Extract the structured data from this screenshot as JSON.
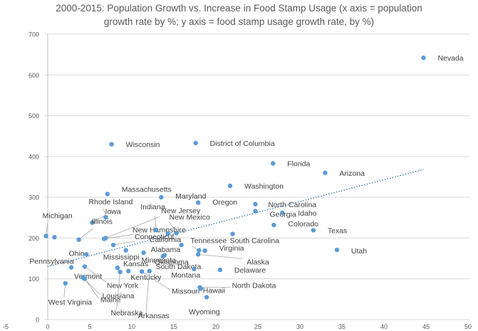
{
  "chart_data": {
    "type": "scatter",
    "title_lines": [
      "2000-2015: Population Growth vs. Increase in Food Stamp Usage (x axis = population",
      "growth rate by %; y axis = food stamp usage growth rate, by %)"
    ],
    "xlabel": "",
    "ylabel": "",
    "xlim": [
      -5,
      50
    ],
    "ylim": [
      0,
      700
    ],
    "x_ticks": [
      -5,
      0,
      5,
      10,
      15,
      20,
      25,
      30,
      35,
      40,
      45,
      50
    ],
    "y_ticks": [
      0,
      100,
      200,
      300,
      400,
      500,
      600,
      700
    ],
    "grid": "horizontal",
    "legend": "none",
    "point_color": "#5b9bd5",
    "trendline": {
      "style": "dotted",
      "color": "#2e75b6",
      "from": [
        0,
        130
      ],
      "to": [
        44.7,
        368
      ]
    },
    "points": [
      {
        "label": "Nevada",
        "x": 44.7,
        "y": 642
      },
      {
        "label": "Wisconsin",
        "x": 7.6,
        "y": 430
      },
      {
        "label": "District of Columbia",
        "x": 17.6,
        "y": 433
      },
      {
        "label": "Florida",
        "x": 26.8,
        "y": 383
      },
      {
        "label": "Arizona",
        "x": 33.0,
        "y": 360
      },
      {
        "label": "Washington",
        "x": 21.7,
        "y": 328
      },
      {
        "label": "Massachusetts",
        "x": 7.1,
        "y": 308
      },
      {
        "label": "Maryland",
        "x": 13.5,
        "y": 300
      },
      {
        "label": "Oregon",
        "x": 17.9,
        "y": 287
      },
      {
        "label": "North Carolina",
        "x": 24.7,
        "y": 283
      },
      {
        "label": "Georgia",
        "x": 24.7,
        "y": 266
      },
      {
        "label": "Idaho",
        "x": 27.9,
        "y": 262
      },
      {
        "label": "Rhode Island",
        "x": 6.9,
        "y": 251
      },
      {
        "label": "Iowa",
        "x": 5.3,
        "y": 238
      },
      {
        "label": "New Jersey",
        "x": 6.9,
        "y": 200
      },
      {
        "label": "Michigan",
        "x": -0.2,
        "y": 205
      },
      {
        "label": "Illinois",
        "x": 3.7,
        "y": 196
      },
      {
        "label": "New Hampshire",
        "x": 6.7,
        "y": 198
      },
      {
        "label": "Indiana",
        "x": 12.9,
        "y": 220
      },
      {
        "label": "New Mexico",
        "x": 15.3,
        "y": 212
      },
      {
        "label": "Colorado",
        "x": 26.9,
        "y": 232
      },
      {
        "label": "Texas",
        "x": 31.6,
        "y": 219
      },
      {
        "label": "California",
        "x": 14.3,
        "y": 211
      },
      {
        "label": "South Carolina",
        "x": 22.0,
        "y": 210
      },
      {
        "label": "Connecticut",
        "x": 7.8,
        "y": 183
      },
      {
        "label": "Utah",
        "x": 34.4,
        "y": 171
      },
      {
        "label": "Ohio",
        "x": 0.8,
        "y": 202
      },
      {
        "label": "Mississippi",
        "x": 9.3,
        "y": 170
      },
      {
        "label": "Alabama",
        "x": 15.9,
        "y": 183
      },
      {
        "label": "Tennessee",
        "x": 18.0,
        "y": 170
      },
      {
        "label": "Virginia",
        "x": 18.7,
        "y": 169
      },
      {
        "label": "Pennsylvania",
        "x": 4.6,
        "y": 160
      },
      {
        "label": "Minnesota",
        "x": 11.4,
        "y": 164
      },
      {
        "label": "Oklahoma",
        "x": 13.9,
        "y": 158
      },
      {
        "label": "South Dakota",
        "x": 13.7,
        "y": 155
      },
      {
        "label": "Alaska",
        "x": 17.9,
        "y": 160
      },
      {
        "label": "Kansas",
        "x": 8.3,
        "y": 127
      },
      {
        "label": "Montana",
        "x": 17.4,
        "y": 124
      },
      {
        "label": "Delaware",
        "x": 20.5,
        "y": 122
      },
      {
        "label": "Vermont",
        "x": 2.8,
        "y": 128
      },
      {
        "label": "Kentucky",
        "x": 9.6,
        "y": 119
      },
      {
        "label": "New York",
        "x": 4.4,
        "y": 130
      },
      {
        "label": "Louisiana",
        "x": 4.2,
        "y": 103
      },
      {
        "label": "Maine",
        "x": 4.4,
        "y": 100
      },
      {
        "label": "Missouri",
        "x": 11.2,
        "y": 118
      },
      {
        "label": "Nebraska",
        "x": 8.6,
        "y": 117
      },
      {
        "label": "Arkansas",
        "x": 12.1,
        "y": 119
      },
      {
        "label": "West Virginia",
        "x": 2.1,
        "y": 89
      },
      {
        "label": "North Dakota",
        "x": 18.1,
        "y": 79
      },
      {
        "label": "Hawaii",
        "x": 18.2,
        "y": 76
      },
      {
        "label": "Wyoming",
        "x": 18.9,
        "y": 55
      }
    ]
  }
}
